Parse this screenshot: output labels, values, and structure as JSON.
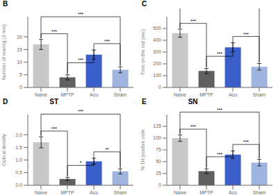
{
  "chart_data": [
    {
      "type": "bar",
      "title": "B",
      "categories": [
        "Naive",
        "MPTP",
        "Acu",
        "Sham"
      ],
      "values": [
        17,
        4,
        13,
        7
      ],
      "errors": [
        2.0,
        1.0,
        1.8,
        1.2
      ],
      "colors": [
        "#c8c8c8",
        "#606060",
        "#3a5fc8",
        "#a0b4e0"
      ],
      "ylabel": "Number of rearing (3 min)",
      "ylim": [
        0,
        28
      ],
      "yticks": [
        0,
        5,
        10,
        15,
        20
      ],
      "annotations": [
        "***",
        "***",
        "***",
        "***"
      ]
    },
    {
      "type": "bar",
      "title": "C",
      "categories": [
        "Naive",
        "MPTP",
        "Acu",
        "Sham"
      ],
      "values": [
        460,
        140,
        340,
        175
      ],
      "errors": [
        35,
        22,
        38,
        28
      ],
      "colors": [
        "#c8c8c8",
        "#606060",
        "#3a5fc8",
        "#a0b4e0"
      ],
      "ylabel": "Time on the rod (sec)",
      "ylim": [
        0,
        600
      ],
      "yticks": [
        0,
        100,
        200,
        300,
        400,
        500
      ],
      "annotations": [
        "***",
        "***",
        "***",
        "***"
      ]
    },
    {
      "type": "bar",
      "title": "D",
      "subtitle": "ST",
      "categories": [
        "Naive",
        "MPTP",
        "Acu",
        "Sham"
      ],
      "values": [
        1.7,
        0.25,
        0.95,
        0.55
      ],
      "errors": [
        0.22,
        0.06,
        0.12,
        0.1
      ],
      "colors": [
        "#c8c8c8",
        "#606060",
        "#3a5fc8",
        "#a0b4e0"
      ],
      "ylabel": "Optical density",
      "ylim": [
        0,
        2.8
      ],
      "yticks": [
        {
          "value": 0,
          "label": "0.0"
        },
        0.5,
        {
          "value": 1,
          "label": "1.0"
        },
        1.5,
        {
          "value": 2,
          "label": "2.0"
        }
      ],
      "annotations": [
        "***",
        "*",
        "**",
        "***"
      ]
    },
    {
      "type": "bar",
      "title": "E",
      "subtitle": "SN",
      "categories": [
        "Naive",
        "MPTP",
        "Acu",
        "Sham"
      ],
      "values": [
        100,
        30,
        65,
        48
      ],
      "errors": [
        7,
        5,
        8,
        7
      ],
      "colors": [
        "#c8c8c8",
        "#606060",
        "#3a5fc8",
        "#a0b4e0"
      ],
      "ylabel": "% TH positive cells",
      "ylim": [
        0,
        150
      ],
      "yticks": [
        0,
        25,
        50,
        75,
        100,
        125
      ],
      "annotations": [
        "***",
        "***",
        "***",
        "***"
      ]
    }
  ]
}
